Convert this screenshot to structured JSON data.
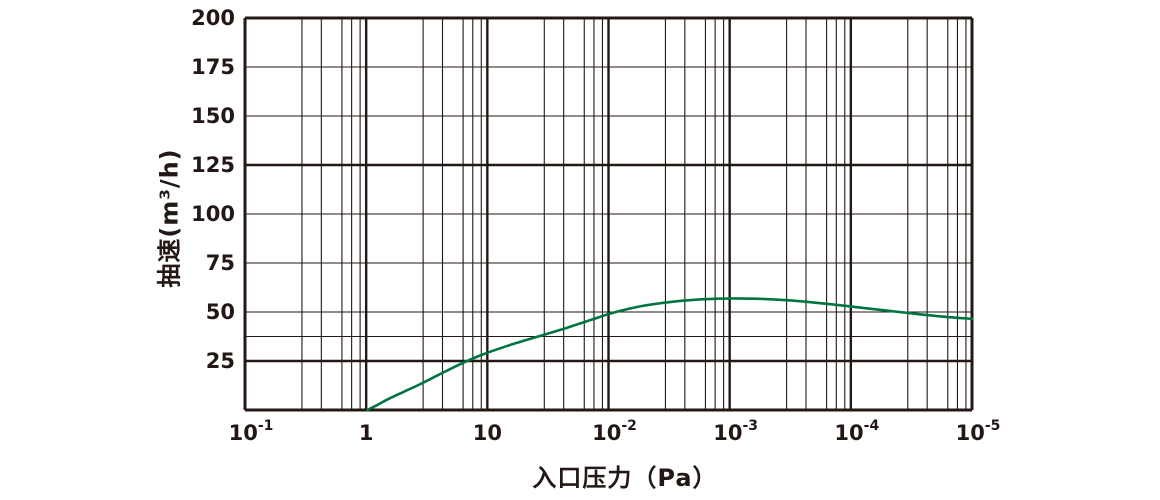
{
  "chart_data": {
    "type": "line",
    "title": "",
    "xlabel": "入口压力（Pa）",
    "ylabel": "抽速(m³/h)",
    "x_scale": "log-decades",
    "x_tick_labels": [
      "10⁻¹",
      "1",
      "10",
      "10⁻²",
      "10⁻³",
      "10⁻⁴",
      "10⁻⁵"
    ],
    "x_ticks": [
      {
        "base": "10",
        "exp": "-1"
      },
      {
        "base": "1",
        "exp": ""
      },
      {
        "base": "10",
        "exp": ""
      },
      {
        "base": "10",
        "exp": "-2"
      },
      {
        "base": "10",
        "exp": "-3"
      },
      {
        "base": "10",
        "exp": "-4"
      },
      {
        "base": "10",
        "exp": "-5"
      }
    ],
    "y_ticks": [
      {
        "value": 200,
        "label": "200",
        "thick": true
      },
      {
        "value": 175,
        "label": "175",
        "thick": false
      },
      {
        "value": 150,
        "label": "150",
        "thick": false
      },
      {
        "value": 125,
        "label": "125",
        "thick": true
      },
      {
        "value": 100,
        "label": "100",
        "thick": false
      },
      {
        "value": 75,
        "label": "75",
        "thick": false
      },
      {
        "value": 50,
        "label": "50",
        "thick": false
      },
      {
        "value": 37.5,
        "label": "",
        "thick": false
      },
      {
        "value": 25,
        "label": "25",
        "thick": true
      },
      {
        "value": 0,
        "label": "",
        "thick": true
      }
    ],
    "ylim": [
      0,
      200
    ],
    "grid": true,
    "legend_position": "none",
    "series": [
      {
        "name": "pumping-speed-curve",
        "color": "#007540",
        "points_decade_vs_speed": [
          [
            1.01,
            0
          ],
          [
            1.09,
            2.5
          ],
          [
            1.18,
            5.5
          ],
          [
            1.3,
            9
          ],
          [
            1.44,
            13
          ],
          [
            1.6,
            18
          ],
          [
            1.78,
            23.5
          ],
          [
            1.97,
            28.5
          ],
          [
            2.18,
            33
          ],
          [
            2.42,
            37.5
          ],
          [
            2.66,
            42
          ],
          [
            2.88,
            46.5
          ],
          [
            3.06,
            50
          ],
          [
            3.3,
            53.3
          ],
          [
            3.6,
            55.7
          ],
          [
            3.9,
            56.8
          ],
          [
            4.2,
            56.8
          ],
          [
            4.5,
            55.9
          ],
          [
            4.8,
            54.2
          ],
          [
            5.1,
            52.1
          ],
          [
            5.4,
            50
          ],
          [
            5.7,
            48
          ],
          [
            6.0,
            46.5
          ]
        ]
      }
    ]
  },
  "colors": {
    "ink": "#231815",
    "background": "#ffffff",
    "curve_green": "#007540"
  }
}
